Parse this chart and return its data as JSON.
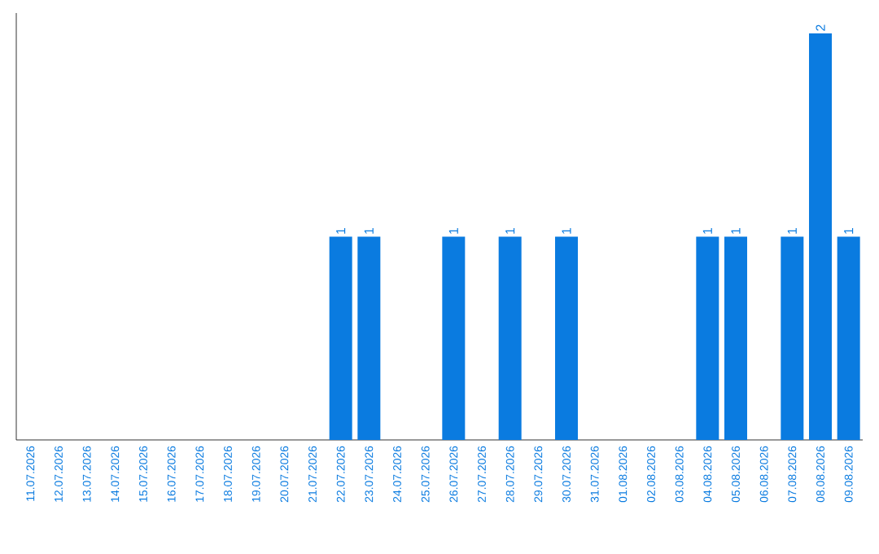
{
  "chart_data": {
    "type": "bar",
    "categories": [
      "11.07.2026",
      "12.07.2026",
      "13.07.2026",
      "14.07.2026",
      "15.07.2026",
      "16.07.2026",
      "17.07.2026",
      "18.07.2026",
      "19.07.2026",
      "20.07.2026",
      "21.07.2026",
      "22.07.2026",
      "23.07.2026",
      "24.07.2026",
      "25.07.2026",
      "26.07.2026",
      "27.07.2026",
      "28.07.2026",
      "29.07.2026",
      "30.07.2026",
      "31.07.2026",
      "01.08.2026",
      "02.08.2026",
      "03.08.2026",
      "04.08.2026",
      "05.08.2026",
      "06.08.2026",
      "07.08.2026",
      "08.08.2026",
      "09.08.2026"
    ],
    "values": [
      0,
      0,
      0,
      0,
      0,
      0,
      0,
      0,
      0,
      0,
      0,
      1,
      1,
      0,
      0,
      1,
      0,
      1,
      0,
      1,
      0,
      0,
      0,
      0,
      1,
      1,
      0,
      1,
      2,
      1
    ],
    "value_labels": [
      null,
      null,
      null,
      null,
      null,
      null,
      null,
      null,
      null,
      null,
      null,
      "1",
      "1",
      null,
      null,
      "1",
      null,
      "1",
      null,
      "1",
      null,
      null,
      null,
      null,
      "1",
      "1",
      null,
      "1",
      "2",
      "1"
    ],
    "color": "#0a7be0",
    "tick_labels": "x"
  }
}
